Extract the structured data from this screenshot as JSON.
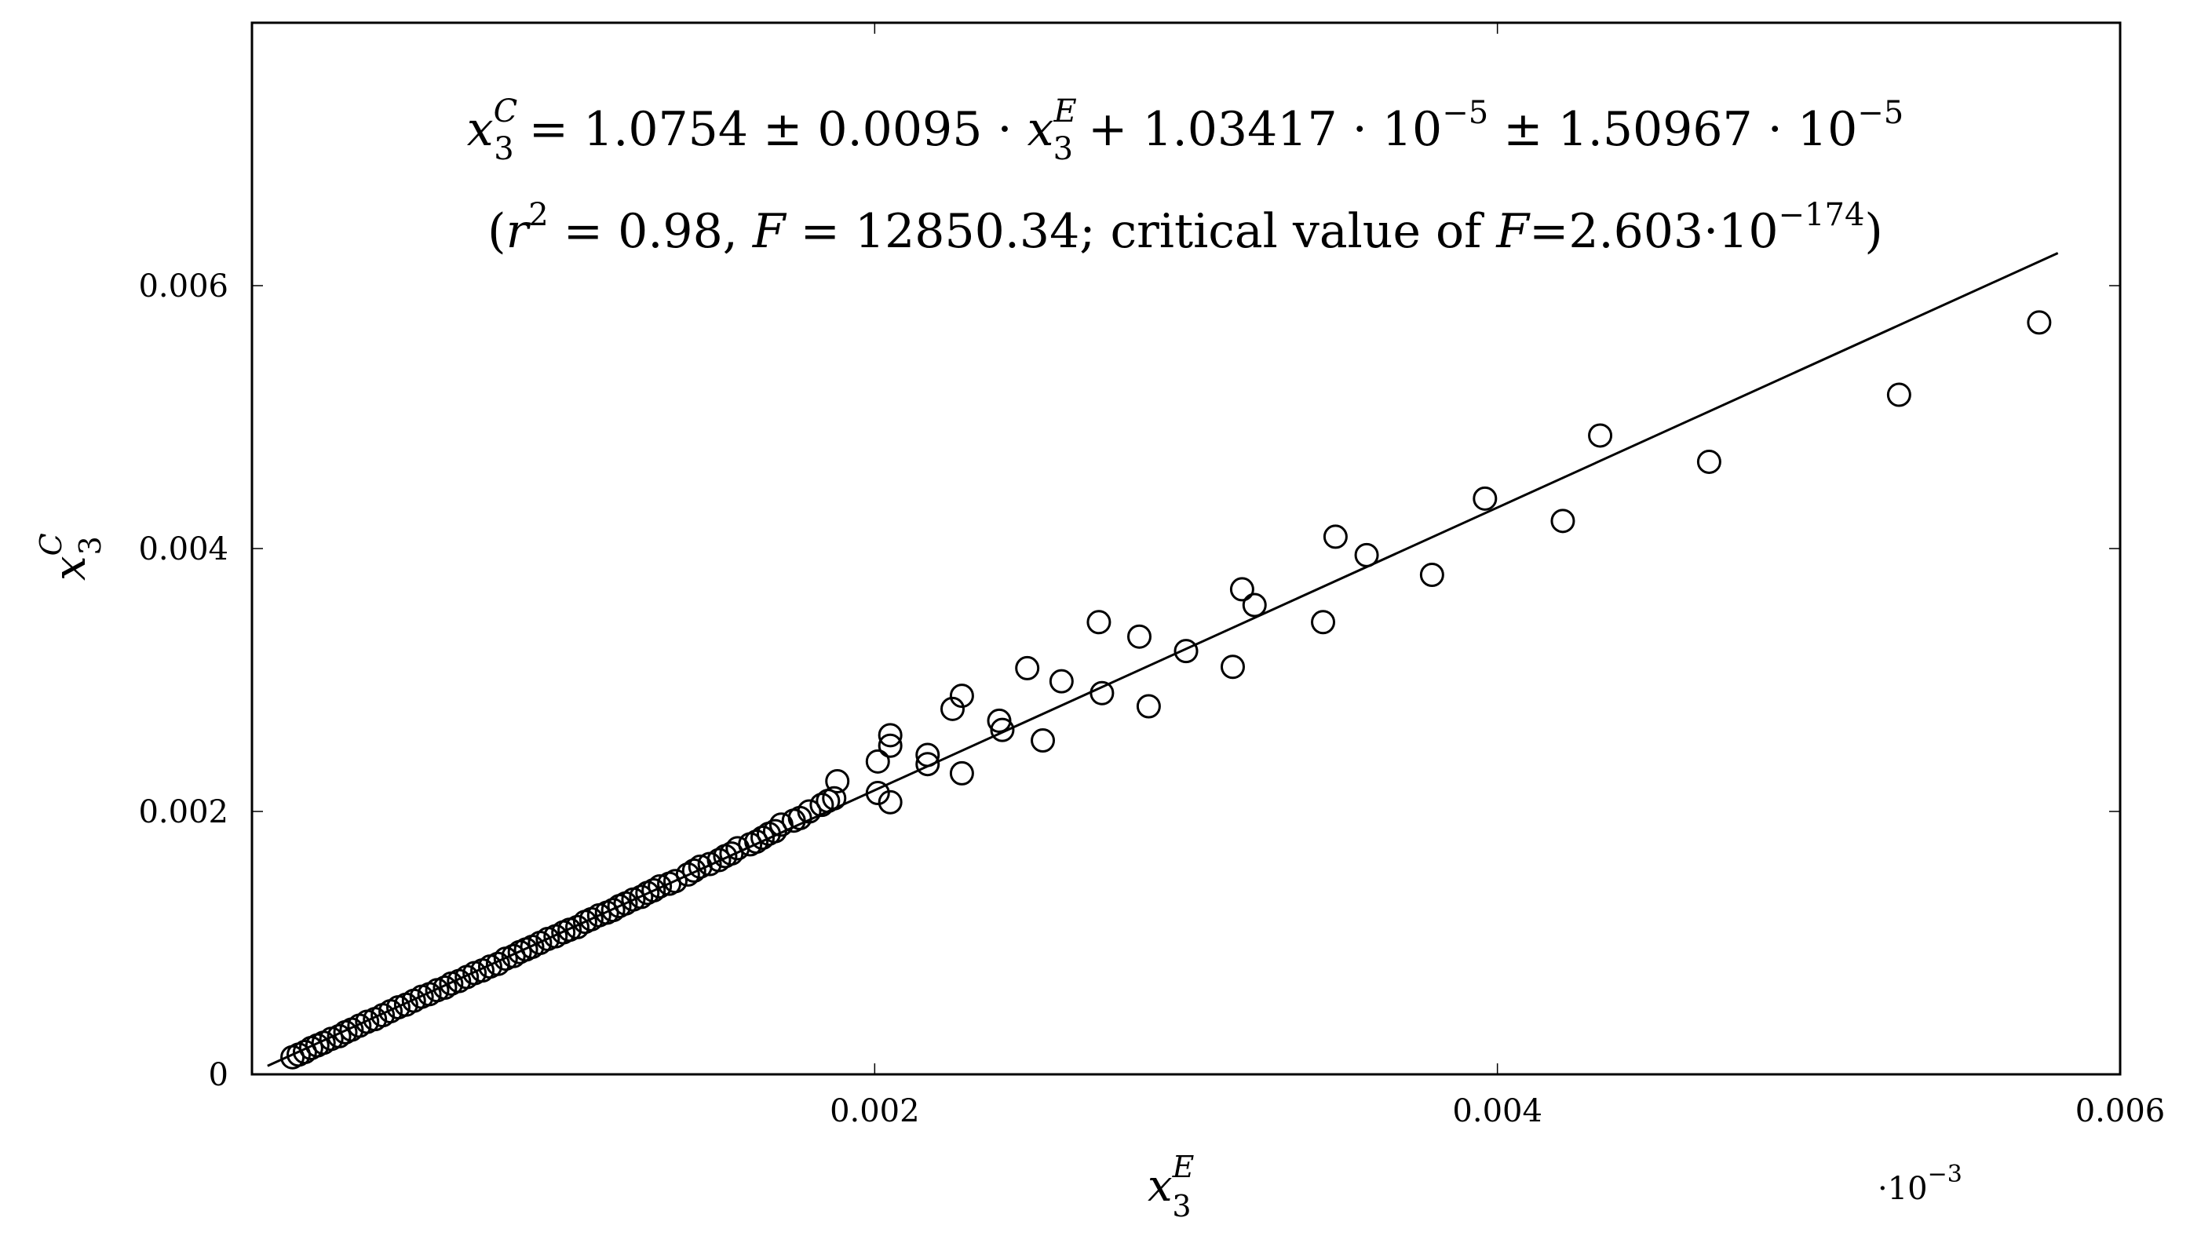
{
  "chart_data": {
    "type": "scatter",
    "title": "",
    "xlabel": {
      "main": "x",
      "sub": "3",
      "sup": "E"
    },
    "ylabel": {
      "main": "x",
      "sub": "3",
      "sup": "C"
    },
    "xlim": [
      0.0,
      0.006
    ],
    "ylim": [
      0,
      0.008
    ],
    "x_ticks": [
      0.002,
      0.004,
      0.006
    ],
    "x_tick_labels": [
      "0.002",
      "0.004",
      "0.006"
    ],
    "y_ticks": [
      0,
      0.002,
      0.004,
      0.006
    ],
    "y_tick_labels": [
      "0",
      "0.002",
      "0.004",
      "0.006"
    ],
    "x_scale_note": {
      "base": "·10",
      "exp": "−3"
    },
    "grid": false,
    "legend": "none",
    "equation": {
      "lhs": "x",
      "lhs_sub": "3",
      "lhs_sup": "C",
      "text1": " = 1.0754 ± 0.0095 · ",
      "var": "x",
      "var_sub": "3",
      "var_sup": "E",
      "text2": " + 1.03417 · 10",
      "exp1": "−5",
      "text3": " ± 1.50967 · 10",
      "exp2": "−5"
    },
    "stats": {
      "open": "(",
      "r": "r",
      "r_sup": "2",
      "r_text": " = 0.98,  ",
      "F": "F",
      "F_text": " = 12850.34; critical value of ",
      "F2": "F",
      "F2_text": "=2.603·10",
      "exp": "−174",
      "close": ")"
    },
    "series": [
      {
        "marker": "open-circle",
        "x": [
          0.00013,
          0.00015,
          0.00017,
          0.00019,
          0.00021,
          0.00023,
          0.000255,
          0.00028,
          0.0003,
          0.00032,
          0.000345,
          0.00037,
          0.000395,
          0.00042,
          0.000445,
          0.00047,
          0.000495,
          0.00052,
          0.000545,
          0.00057,
          0.000595,
          0.00062,
          0.00064,
          0.000665,
          0.00069,
          0.000715,
          0.00074,
          0.000765,
          0.00079,
          0.000815,
          0.00084,
          0.00086,
          0.00088,
          0.0009,
          0.000925,
          0.00095,
          0.000975,
          0.001,
          0.00102,
          0.001045,
          0.00107,
          0.00109,
          0.001115,
          0.00114,
          0.00116,
          0.00118,
          0.0012,
          0.001225,
          0.00125,
          0.00127,
          0.00129,
          0.00131,
          0.00134,
          0.00136,
          0.0014,
          0.00142,
          0.00144,
          0.00147,
          0.0015,
          0.00152,
          0.00154,
          0.00156,
          0.0016,
          0.00162,
          0.00164,
          0.00166,
          0.00168,
          0.0017,
          0.00174,
          0.00176,
          0.00179,
          0.00183,
          0.00185,
          0.00187,
          0.00188,
          0.00201,
          0.00201,
          0.00205,
          0.00205,
          0.00205,
          0.00217,
          0.00217,
          0.00225,
          0.00228,
          0.00228,
          0.0024,
          0.00241,
          0.00249,
          0.00254,
          0.0026,
          0.00272,
          0.00273,
          0.00285,
          0.00288,
          0.003,
          0.00315,
          0.00318,
          0.00322,
          0.00344,
          0.00348,
          0.00358,
          0.00379,
          0.00396,
          0.00421,
          0.00433,
          0.00468,
          0.00529,
          0.00574
        ],
        "y": [
          0.00013,
          0.00015,
          0.00017,
          0.0002,
          0.00022,
          0.00024,
          0.00027,
          0.00029,
          0.00032,
          0.00034,
          0.00037,
          0.0004,
          0.00042,
          0.00045,
          0.00048,
          0.00051,
          0.00053,
          0.00056,
          0.00059,
          0.00061,
          0.00064,
          0.00066,
          0.00069,
          0.00071,
          0.00074,
          0.00077,
          0.00079,
          0.00082,
          0.00084,
          0.00088,
          0.0009,
          0.00093,
          0.00095,
          0.00097,
          0.001,
          0.00103,
          0.00105,
          0.00108,
          0.0011,
          0.00112,
          0.00116,
          0.00118,
          0.00121,
          0.00123,
          0.00125,
          0.00128,
          0.0013,
          0.00133,
          0.00135,
          0.00138,
          0.0014,
          0.00143,
          0.00145,
          0.00147,
          0.00152,
          0.00155,
          0.00158,
          0.0016,
          0.00163,
          0.00166,
          0.00168,
          0.00172,
          0.00175,
          0.00177,
          0.0018,
          0.00183,
          0.00185,
          0.0019,
          0.00193,
          0.00195,
          0.002,
          0.00205,
          0.00208,
          0.0021,
          0.00223,
          0.00214,
          0.00238,
          0.00258,
          0.00207,
          0.0025,
          0.00243,
          0.00236,
          0.00278,
          0.00288,
          0.00229,
          0.00269,
          0.00262,
          0.00309,
          0.00254,
          0.00299,
          0.00344,
          0.0029,
          0.00333,
          0.0028,
          0.00322,
          0.0031,
          0.00369,
          0.00357,
          0.00344,
          0.00409,
          0.00395,
          0.0038,
          0.00438,
          0.00421,
          0.00486,
          0.00466,
          0.00517,
          0.00572
        ]
      }
    ],
    "fit_line": {
      "slope": 1.0754,
      "intercept": 1.03417e-05,
      "x_start": 5e-05,
      "x_end": 0.0058
    }
  }
}
